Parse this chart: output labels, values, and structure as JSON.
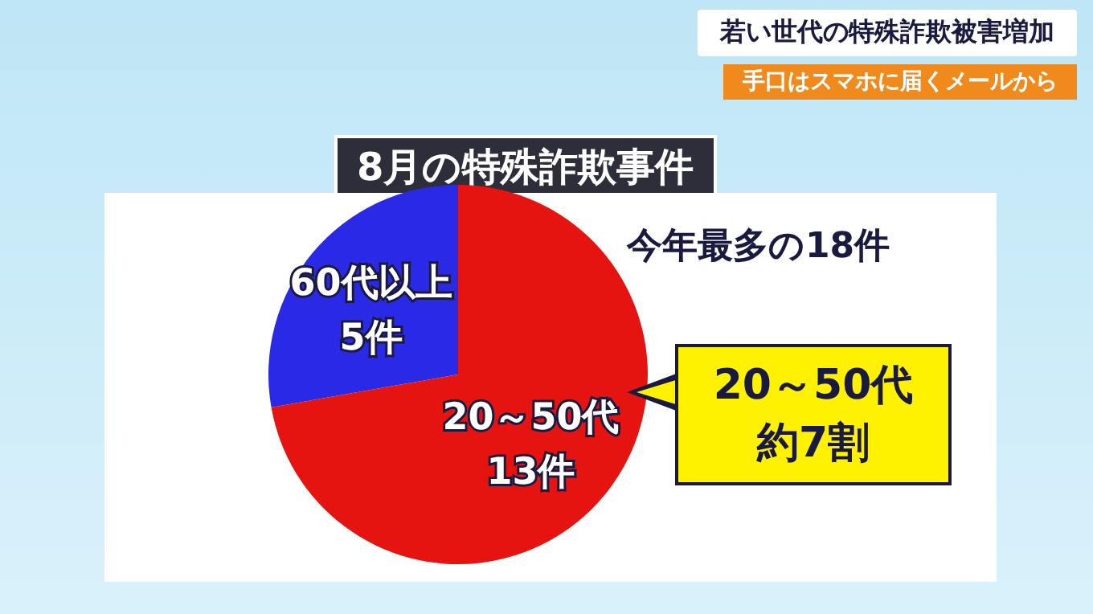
{
  "chart_data": {
    "type": "pie",
    "title": "8月の特殊詐欺事件",
    "categories": [
      "60代以上",
      "20～50代"
    ],
    "values": [
      5,
      13
    ],
    "colors": [
      "#2a2ae6",
      "#e61410"
    ],
    "value_labels": [
      "5件",
      "13件"
    ],
    "annotations": [
      "若い世代の特殊詐欺被害増加",
      "手口はスマホに届くメールから",
      "今年最多の18件",
      "20～50代",
      "約7割"
    ]
  }
}
